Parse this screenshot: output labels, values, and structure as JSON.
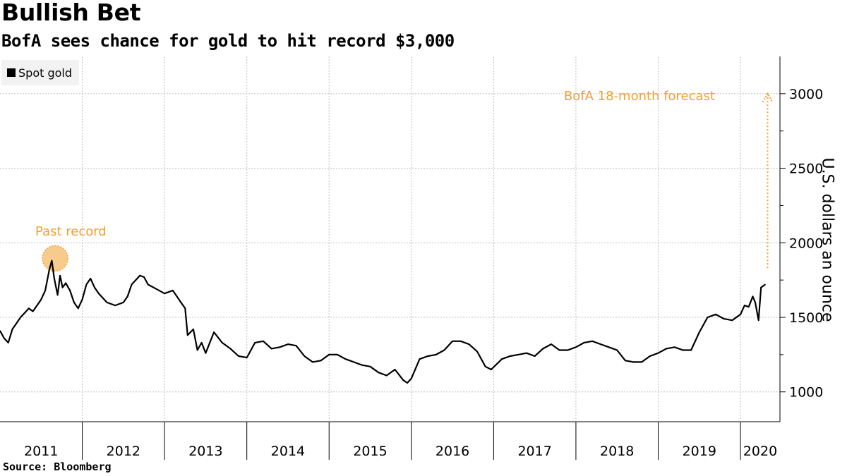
{
  "header": {
    "title": "Bullish Bet",
    "subtitle": "BofA sees chance for gold to hit record $3,000"
  },
  "footer": {
    "source": "Source: Bloomberg"
  },
  "colors": {
    "line": "#000000",
    "accent": "#f0a030",
    "grid": "#bfbfbf",
    "legend_bg": "#f2f2f2"
  },
  "chart_data": {
    "type": "line",
    "title": "Bullish Bet",
    "subtitle": "BofA sees chance for gold to hit record $3,000",
    "ylabel": "U.S. dollars an ounce",
    "ylim": [
      800,
      3250
    ],
    "yticks": [
      1000,
      1500,
      2000,
      2500,
      3000
    ],
    "ytick_labels": [
      "1000",
      "1500",
      "2000",
      "2500",
      "3000"
    ],
    "xlim": [
      2011.0,
      2020.48
    ],
    "xticks": [
      "2011",
      "2012",
      "2013",
      "2014",
      "2015",
      "2016",
      "2017",
      "2018",
      "2019",
      "2020"
    ],
    "grid": true,
    "legend_position": "top-left",
    "series": [
      {
        "name": "Spot gold",
        "x": [
          2011.0,
          2011.05,
          2011.1,
          2011.15,
          2011.2,
          2011.25,
          2011.3,
          2011.35,
          2011.4,
          2011.45,
          2011.5,
          2011.55,
          2011.6,
          2011.63,
          2011.66,
          2011.7,
          2011.73,
          2011.76,
          2011.8,
          2011.85,
          2011.9,
          2011.95,
          2012.0,
          2012.05,
          2012.1,
          2012.15,
          2012.2,
          2012.3,
          2012.4,
          2012.5,
          2012.55,
          2012.6,
          2012.7,
          2012.75,
          2012.8,
          2012.9,
          2013.0,
          2013.1,
          2013.2,
          2013.25,
          2013.28,
          2013.35,
          2013.4,
          2013.45,
          2013.5,
          2013.6,
          2013.7,
          2013.8,
          2013.9,
          2014.0,
          2014.1,
          2014.2,
          2014.3,
          2014.4,
          2014.5,
          2014.6,
          2014.7,
          2014.8,
          2014.9,
          2015.0,
          2015.1,
          2015.2,
          2015.3,
          2015.4,
          2015.5,
          2015.6,
          2015.7,
          2015.8,
          2015.9,
          2015.95,
          2016.0,
          2016.1,
          2016.2,
          2016.3,
          2016.4,
          2016.5,
          2016.6,
          2016.7,
          2016.8,
          2016.9,
          2016.97,
          2017.1,
          2017.2,
          2017.3,
          2017.4,
          2017.5,
          2017.6,
          2017.7,
          2017.8,
          2017.9,
          2018.0,
          2018.1,
          2018.2,
          2018.3,
          2018.4,
          2018.5,
          2018.6,
          2018.7,
          2018.8,
          2018.9,
          2019.0,
          2019.1,
          2019.2,
          2019.3,
          2019.4,
          2019.5,
          2019.6,
          2019.7,
          2019.8,
          2019.9,
          2020.0,
          2020.05,
          2020.1,
          2020.15,
          2020.18,
          2020.22,
          2020.25,
          2020.3
        ],
        "values": [
          1410,
          1360,
          1330,
          1420,
          1460,
          1500,
          1530,
          1560,
          1540,
          1580,
          1620,
          1680,
          1820,
          1880,
          1760,
          1650,
          1780,
          1700,
          1730,
          1680,
          1600,
          1560,
          1620,
          1720,
          1760,
          1700,
          1660,
          1600,
          1580,
          1600,
          1640,
          1720,
          1780,
          1770,
          1720,
          1690,
          1660,
          1680,
          1600,
          1560,
          1380,
          1420,
          1280,
          1330,
          1260,
          1400,
          1330,
          1290,
          1240,
          1230,
          1330,
          1340,
          1290,
          1300,
          1320,
          1310,
          1240,
          1200,
          1210,
          1250,
          1250,
          1220,
          1200,
          1180,
          1170,
          1130,
          1110,
          1150,
          1080,
          1060,
          1090,
          1220,
          1240,
          1250,
          1280,
          1340,
          1340,
          1320,
          1270,
          1170,
          1150,
          1220,
          1240,
          1250,
          1260,
          1240,
          1290,
          1320,
          1280,
          1280,
          1300,
          1330,
          1340,
          1320,
          1300,
          1280,
          1210,
          1200,
          1200,
          1240,
          1260,
          1290,
          1300,
          1280,
          1280,
          1400,
          1500,
          1520,
          1490,
          1480,
          1520,
          1580,
          1570,
          1640,
          1600,
          1480,
          1700,
          1720
        ],
        "color": "#000000"
      }
    ],
    "annotations": [
      {
        "text": "Past record",
        "x": 2011.67,
        "y": 1900,
        "marker": "circle"
      },
      {
        "text": "BofA 18-month forecast",
        "x": 2020.33,
        "y_from": 1830,
        "y_to": 3000,
        "marker": "dotted-arrow"
      }
    ]
  }
}
